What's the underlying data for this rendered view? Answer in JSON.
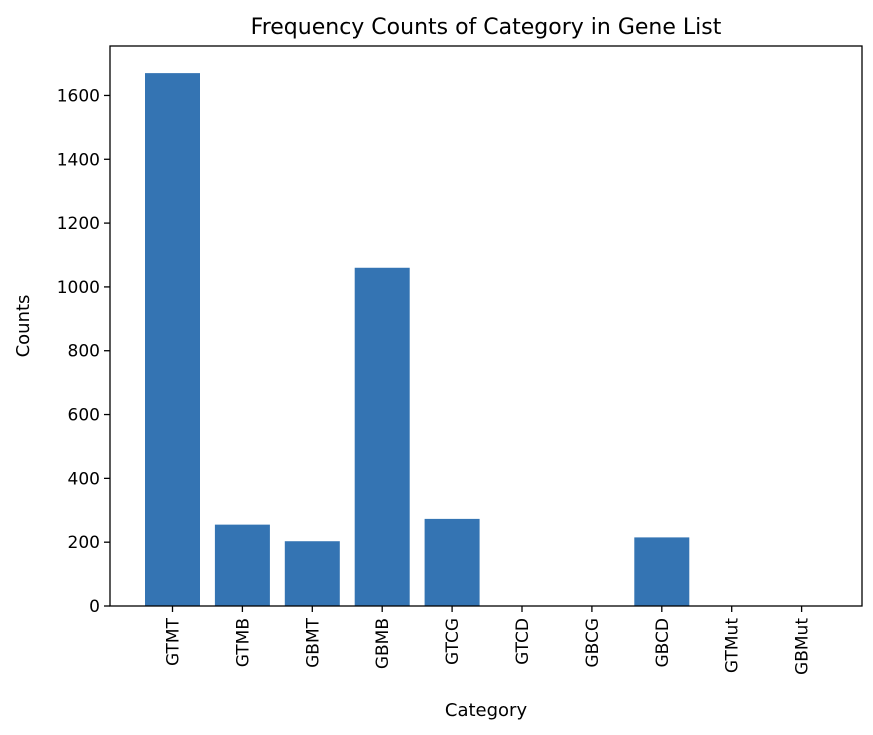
{
  "chart_data": {
    "type": "bar",
    "title": "Frequency Counts of Category in Gene List",
    "xlabel": "Category",
    "ylabel": "Counts",
    "categories": [
      "GTMT",
      "GTMB",
      "GBMT",
      "GBMB",
      "GTCG",
      "GTCD",
      "GBCG",
      "GBCD",
      "GTMut",
      "GBMut"
    ],
    "values": [
      1670,
      255,
      203,
      1060,
      273,
      0,
      0,
      215,
      0,
      0
    ],
    "ylim": [
      0,
      1755
    ],
    "yticks": [
      0,
      200,
      400,
      600,
      800,
      1000,
      1200,
      1400,
      1600
    ],
    "color": "#3474b3",
    "grid": false
  }
}
